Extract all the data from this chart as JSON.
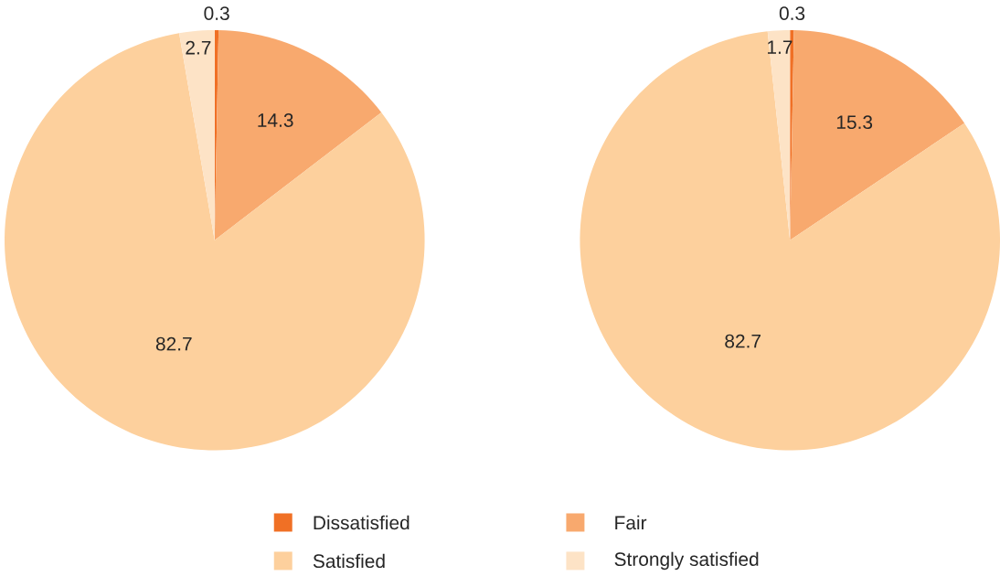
{
  "chart_data": [
    {
      "type": "pie",
      "categories": [
        "Dissatisfied",
        "Fair",
        "Satisfied",
        "Strongly satisfied"
      ],
      "values": [
        0.3,
        14.3,
        82.7,
        2.7
      ],
      "colors": [
        "#f07025",
        "#f8a96e",
        "#fdd09d",
        "#fde3c6"
      ],
      "data_labels": true,
      "legend": "bottom"
    },
    {
      "type": "pie",
      "categories": [
        null,
        null,
        null,
        null
      ],
      "values": [
        0.3,
        15.3,
        82.7,
        1.7
      ],
      "colors": [
        "#f07025",
        "#f8a96e",
        "#fdd09d",
        "#fde3c6"
      ],
      "data_labels": true
    }
  ]
}
